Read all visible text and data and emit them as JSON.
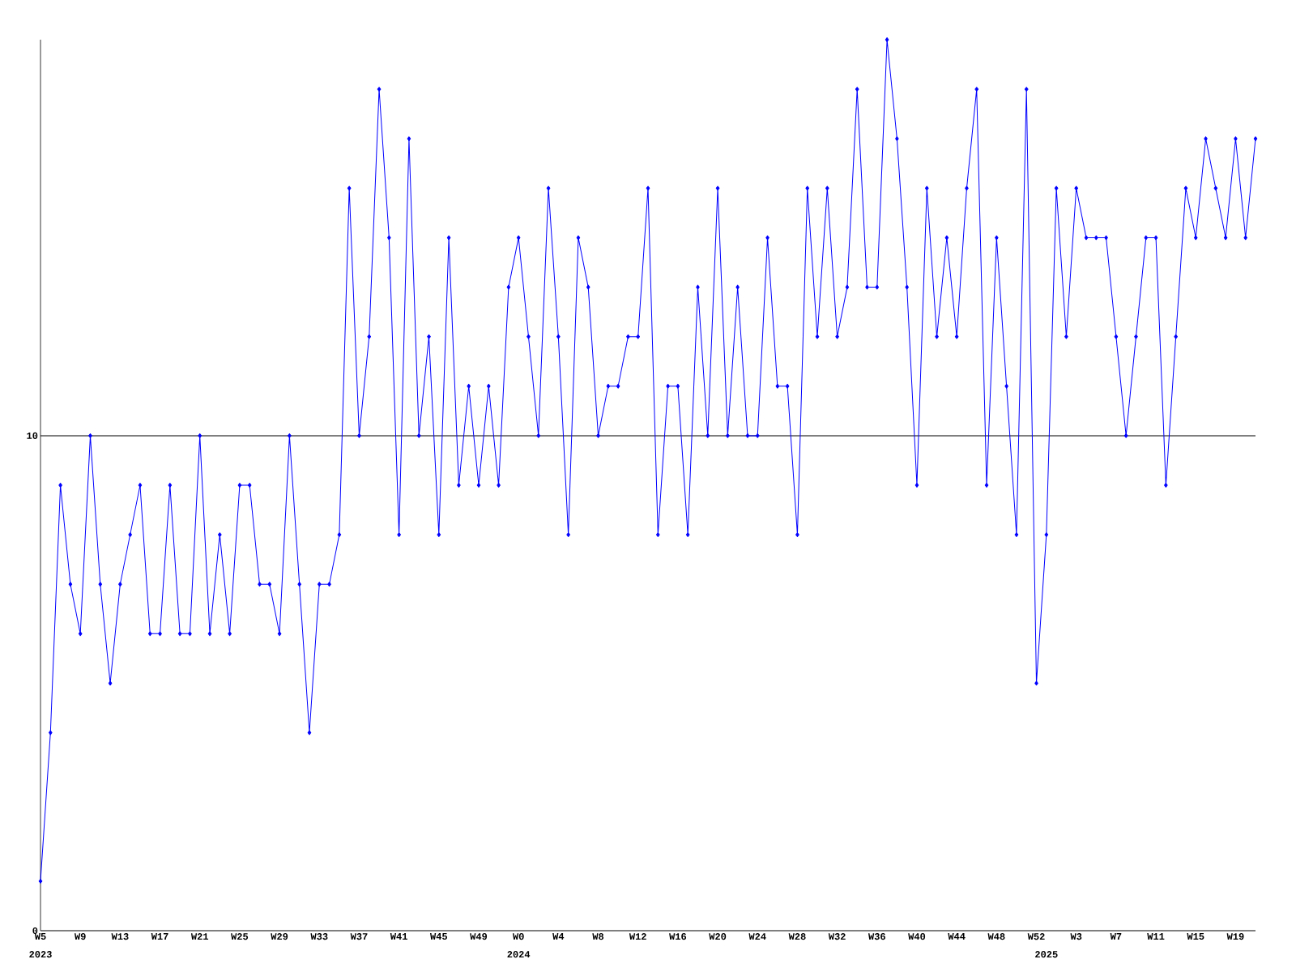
{
  "chart_data": {
    "type": "line",
    "color": "#0000ff",
    "marker": "diamond",
    "grid": "y",
    "x": [
      "2023-01-30",
      "2023-02-06",
      "2023-02-13",
      "2023-02-20",
      "2023-02-27",
      "2023-03-06",
      "2023-03-13",
      "2023-03-20",
      "2023-03-27",
      "2023-04-03",
      "2023-04-10",
      "2023-04-17",
      "2023-04-24",
      "2023-05-01",
      "2023-05-08",
      "2023-05-15",
      "2023-05-22",
      "2023-05-29",
      "2023-06-05",
      "2023-06-12",
      "2023-06-19",
      "2023-06-26",
      "2023-07-03",
      "2023-07-10",
      "2023-07-17",
      "2023-07-24",
      "2023-07-31",
      "2023-08-07",
      "2023-08-14",
      "2023-08-21",
      "2023-08-28",
      "2023-09-04",
      "2023-09-11",
      "2023-09-18",
      "2023-09-25",
      "2023-10-02",
      "2023-10-09",
      "2023-10-16",
      "2023-10-23",
      "2023-10-30",
      "2023-11-06",
      "2023-11-13",
      "2023-11-20",
      "2023-11-27",
      "2023-12-04",
      "2023-12-11",
      "2023-12-18",
      "2023-12-25",
      "2024-01-01",
      "2024-01-08",
      "2024-01-15",
      "2024-01-22",
      "2024-01-29",
      "2024-02-05",
      "2024-02-12",
      "2024-02-19",
      "2024-02-26",
      "2024-03-04",
      "2024-03-11",
      "2024-03-18",
      "2024-03-25",
      "2024-04-01",
      "2024-04-08",
      "2024-04-15",
      "2024-04-22",
      "2024-04-29",
      "2024-05-06",
      "2024-05-13",
      "2024-05-20",
      "2024-05-27",
      "2024-06-03",
      "2024-06-10",
      "2024-06-17",
      "2024-06-24",
      "2024-07-01",
      "2024-07-08",
      "2024-07-15",
      "2024-07-22",
      "2024-07-29",
      "2024-08-05",
      "2024-08-12",
      "2024-08-19",
      "2024-08-26",
      "2024-09-02",
      "2024-09-09",
      "2024-09-16",
      "2024-09-23",
      "2024-09-30",
      "2024-10-07",
      "2024-10-14",
      "2024-10-21",
      "2024-10-28",
      "2024-11-04",
      "2024-11-11",
      "2024-11-18",
      "2024-11-25",
      "2024-12-02",
      "2024-12-09",
      "2024-12-16",
      "2024-12-23",
      "2024-12-30",
      "2025-01-06",
      "2025-01-13",
      "2025-01-20",
      "2025-01-27",
      "2025-02-03",
      "2025-02-10",
      "2025-02-17",
      "2025-02-24",
      "2025-03-03",
      "2025-03-10",
      "2025-03-17",
      "2025-03-24",
      "2025-03-31",
      "2025-04-07",
      "2025-04-14",
      "2025-04-21",
      "2025-04-28",
      "2025-05-05",
      "2025-05-12",
      "2025-05-19",
      "2025-05-26",
      "2025-06-02"
    ],
    "values": [
      1,
      4,
      9,
      7,
      6,
      10,
      7,
      5,
      7,
      8,
      9,
      6,
      6,
      9,
      6,
      6,
      10,
      6,
      8,
      6,
      9,
      9,
      7,
      7,
      6,
      10,
      7,
      4,
      7,
      7,
      8,
      15,
      10,
      12,
      17,
      14,
      8,
      16,
      10,
      12,
      8,
      14,
      9,
      11,
      9,
      11,
      9,
      13,
      14,
      12,
      10,
      15,
      12,
      8,
      14,
      13,
      10,
      11,
      11,
      12,
      12,
      15,
      8,
      11,
      11,
      8,
      13,
      10,
      15,
      10,
      13,
      10,
      10,
      14,
      11,
      11,
      8,
      15,
      12,
      15,
      12,
      13,
      17,
      13,
      13,
      18,
      16,
      13,
      9,
      15,
      12,
      14,
      12,
      15,
      17,
      9,
      14,
      11,
      8,
      17,
      5,
      8,
      15,
      12,
      15,
      14,
      14,
      14,
      12,
      10,
      12,
      14,
      14,
      9,
      12,
      15,
      14,
      16,
      15,
      14,
      16,
      14,
      16
    ],
    "xlim": [
      "2023-01-30",
      "2025-06-02"
    ],
    "xticks": [
      {
        "value": "2023-01-30",
        "label": "W5"
      },
      {
        "value": "2023-02-27",
        "label": "W9"
      },
      {
        "value": "2023-03-27",
        "label": "W13"
      },
      {
        "value": "2023-04-24",
        "label": "W17"
      },
      {
        "value": "2023-05-22",
        "label": "W21"
      },
      {
        "value": "2023-06-19",
        "label": "W25"
      },
      {
        "value": "2023-07-17",
        "label": "W29"
      },
      {
        "value": "2023-08-14",
        "label": "W33"
      },
      {
        "value": "2023-09-11",
        "label": "W37"
      },
      {
        "value": "2023-10-09",
        "label": "W41"
      },
      {
        "value": "2023-11-06",
        "label": "W45"
      },
      {
        "value": "2023-12-04",
        "label": "W49"
      },
      {
        "value": "2024-01-01",
        "label": "W0"
      },
      {
        "value": "2024-01-29",
        "label": "W4"
      },
      {
        "value": "2024-02-26",
        "label": "W8"
      },
      {
        "value": "2024-03-25",
        "label": "W12"
      },
      {
        "value": "2024-04-22",
        "label": "W16"
      },
      {
        "value": "2024-05-20",
        "label": "W20"
      },
      {
        "value": "2024-06-17",
        "label": "W24"
      },
      {
        "value": "2024-07-15",
        "label": "W28"
      },
      {
        "value": "2024-08-12",
        "label": "W32"
      },
      {
        "value": "2024-09-09",
        "label": "W36"
      },
      {
        "value": "2024-10-07",
        "label": "W40"
      },
      {
        "value": "2024-11-04",
        "label": "W44"
      },
      {
        "value": "2024-12-02",
        "label": "W48"
      },
      {
        "value": "2024-12-30",
        "label": "W52"
      },
      {
        "value": "2025-01-27",
        "label": "W3"
      },
      {
        "value": "2025-02-24",
        "label": "W7"
      },
      {
        "value": "2025-03-24",
        "label": "W11"
      },
      {
        "value": "2025-04-21",
        "label": "W15"
      },
      {
        "value": "2025-05-19",
        "label": "W19"
      }
    ],
    "ylim": [
      0,
      18
    ],
    "yticks": [
      0,
      10
    ],
    "annotations": [
      "2023",
      "2024",
      "2025"
    ]
  }
}
